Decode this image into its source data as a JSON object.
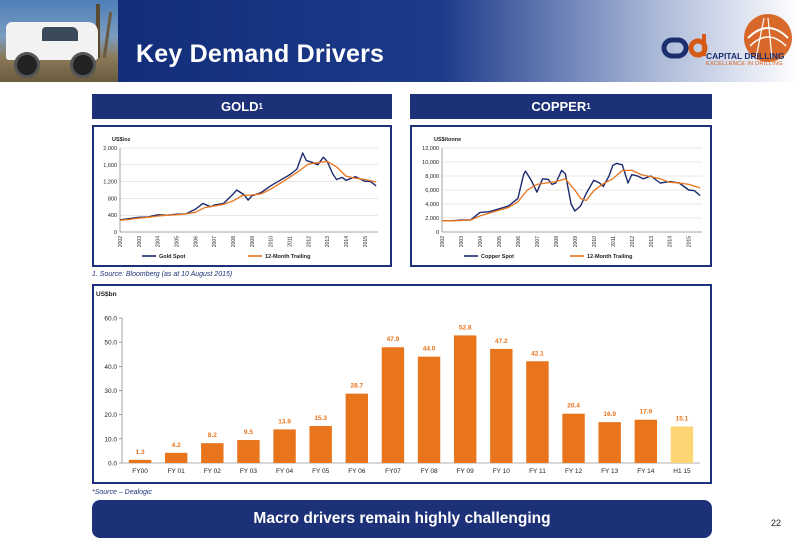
{
  "header": {
    "title": "Key Demand Drivers",
    "logo_text": "CAPITAL DRILLING",
    "logo_tagline": "EXCELLENCE IN DRILLING",
    "colors": {
      "navy": "#1c3177",
      "orange": "#e8741c",
      "highlight": "#fdd575"
    }
  },
  "sections": {
    "gold": {
      "label": "GOLD",
      "sup": "1"
    },
    "copper": {
      "label": "COPPER",
      "sup": "1"
    }
  },
  "notes": {
    "source_bloomberg": "1.   Source: Bloomberg (as at 10 August 2015)",
    "source_dealogic": "*Source – Dealogic"
  },
  "banner": "Macro drivers remain highly challenging",
  "page_number": "22",
  "chart_data": [
    {
      "type": "line",
      "ylabel": "US$/oz",
      "ylim": [
        0,
        2000
      ],
      "yticks": [
        "0",
        "400",
        "800",
        "1,200",
        "1,600",
        "2,000"
      ],
      "xticks": [
        "2002",
        "2003",
        "2004",
        "2005",
        "2006",
        "2007",
        "2008",
        "2009",
        "2010",
        "2011",
        "2012",
        "2013",
        "2014",
        "2015"
      ],
      "legend_position": "bottom",
      "series": [
        {
          "name": "Gold Spot",
          "color": "#1c2a6e",
          "x": [
            2002.0,
            2002.5,
            2003.0,
            2003.5,
            2004.0,
            2004.5,
            2005.0,
            2005.5,
            2006.0,
            2006.4,
            2006.8,
            2007.0,
            2007.5,
            2008.0,
            2008.2,
            2008.6,
            2008.8,
            2009.0,
            2009.5,
            2010.0,
            2010.5,
            2011.0,
            2011.4,
            2011.7,
            2011.9,
            2012.2,
            2012.5,
            2012.8,
            2013.0,
            2013.3,
            2013.5,
            2013.8,
            2014.0,
            2014.5,
            2015.0,
            2015.3,
            2015.6
          ],
          "y": [
            290,
            320,
            350,
            360,
            410,
            400,
            425,
            430,
            540,
            680,
            600,
            640,
            680,
            900,
            1000,
            880,
            760,
            860,
            940,
            1100,
            1230,
            1360,
            1500,
            1880,
            1700,
            1660,
            1600,
            1780,
            1680,
            1380,
            1250,
            1300,
            1230,
            1320,
            1210,
            1200,
            1100
          ]
        },
        {
          "name": "12-Month Trailing",
          "color": "#e8741c",
          "x": [
            2002.0,
            2002.5,
            2003.0,
            2003.5,
            2004.0,
            2004.5,
            2005.0,
            2005.5,
            2006.0,
            2006.5,
            2007.0,
            2007.5,
            2008.0,
            2008.5,
            2009.0,
            2009.5,
            2010.0,
            2010.5,
            2011.0,
            2011.5,
            2012.0,
            2012.5,
            2013.0,
            2013.5,
            2014.0,
            2014.5,
            2015.0,
            2015.6
          ],
          "y": [
            280,
            300,
            330,
            350,
            380,
            400,
            410,
            430,
            470,
            580,
            620,
            660,
            740,
            870,
            880,
            910,
            1020,
            1160,
            1300,
            1450,
            1620,
            1650,
            1680,
            1550,
            1330,
            1280,
            1250,
            1190
          ]
        }
      ]
    },
    {
      "type": "line",
      "ylabel": "US$/tonne",
      "ylim": [
        0,
        12000
      ],
      "yticks": [
        "0",
        "2,000",
        "4,000",
        "6,000",
        "8,000",
        "10,000",
        "12,000"
      ],
      "xticks": [
        "2002",
        "2003",
        "2004",
        "2005",
        "2006",
        "2007",
        "2008",
        "2009",
        "2010",
        "2011",
        "2012",
        "2013",
        "2014",
        "2015"
      ],
      "legend_position": "bottom",
      "series": [
        {
          "name": "Copper Spot",
          "color": "#1c2a6e",
          "x": [
            2002.0,
            2002.5,
            2003.0,
            2003.5,
            2004.0,
            2004.5,
            2005.0,
            2005.5,
            2006.0,
            2006.3,
            2006.4,
            2006.7,
            2007.0,
            2007.3,
            2007.6,
            2007.8,
            2008.0,
            2008.3,
            2008.5,
            2008.8,
            2009.0,
            2009.3,
            2009.6,
            2010.0,
            2010.3,
            2010.5,
            2010.8,
            2011.0,
            2011.2,
            2011.5,
            2011.8,
            2012.0,
            2012.3,
            2012.6,
            2013.0,
            2013.5,
            2014.0,
            2014.5,
            2015.0,
            2015.3,
            2015.6
          ],
          "y": [
            1600,
            1600,
            1700,
            1700,
            2800,
            2900,
            3300,
            3700,
            4800,
            8200,
            8700,
            7400,
            5700,
            7600,
            7500,
            6800,
            7000,
            8800,
            8300,
            4000,
            3000,
            3700,
            5500,
            7400,
            7000,
            6500,
            8000,
            9500,
            9800,
            9600,
            7000,
            8200,
            8000,
            7600,
            8000,
            7000,
            7200,
            7000,
            6000,
            5900,
            5200
          ]
        },
        {
          "name": "12-Month Trailing",
          "color": "#e8741c",
          "x": [
            2002.0,
            2002.5,
            2003.0,
            2003.5,
            2004.0,
            2004.5,
            2005.0,
            2005.5,
            2006.0,
            2006.5,
            2007.0,
            2007.5,
            2008.0,
            2008.5,
            2009.0,
            2009.3,
            2009.6,
            2010.0,
            2010.5,
            2011.0,
            2011.5,
            2012.0,
            2012.5,
            2013.0,
            2013.5,
            2014.0,
            2014.5,
            2015.0,
            2015.6
          ],
          "y": [
            1600,
            1600,
            1650,
            1700,
            2300,
            2700,
            3100,
            3500,
            4300,
            6000,
            6800,
            7000,
            7200,
            7600,
            6000,
            4800,
            4500,
            5900,
            6900,
            7600,
            8800,
            8800,
            8200,
            7900,
            7600,
            7100,
            7000,
            6800,
            6300
          ]
        }
      ]
    },
    {
      "type": "bar",
      "ylabel": "US$bn",
      "ylim": [
        0,
        60
      ],
      "yticks": [
        "0.0",
        "10.0",
        "20.0",
        "30.0",
        "40.0",
        "50.0",
        "60.0"
      ],
      "categories": [
        "FY00",
        "FY 01",
        "FY 02",
        "FY 03",
        "FY 04",
        "FY 05",
        "FY 06",
        "FY07",
        "FY 08",
        "FY 09",
        "FY 10",
        "FY 11",
        "FY 12",
        "FY 13",
        "FY 14",
        "H1 15"
      ],
      "values": [
        1.3,
        4.2,
        8.2,
        9.5,
        13.9,
        15.3,
        28.7,
        47.9,
        44.0,
        52.8,
        47.2,
        42.1,
        20.4,
        16.9,
        17.9,
        15.1
      ],
      "data_labels": [
        "1.3",
        "4.2",
        "8.2",
        "9.5",
        "13.9",
        "15.3",
        "28.7",
        "47.9",
        "44.0",
        "52.8",
        "47.2",
        "42.1",
        "20.4",
        "16.9",
        "17.9",
        "15.1"
      ],
      "bar_color": "#e8741c",
      "highlight_color": "#fdd575",
      "highlight_index": 15,
      "grid": false
    }
  ]
}
